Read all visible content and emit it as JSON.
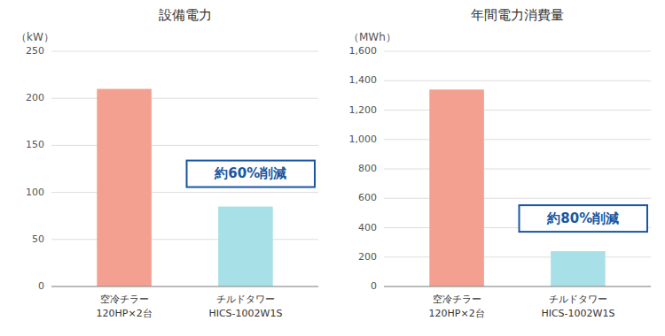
{
  "chart_data": [
    {
      "type": "bar",
      "title": "設備電力",
      "ylabel": "（kW）",
      "categories": [
        "空冷チラー\n120HP×2台",
        "チルドタワー\nHICS-1002W1S"
      ],
      "values": [
        210,
        85
      ],
      "colors": [
        "#F4A090",
        "#A8E0E8"
      ],
      "ylim": [
        0,
        250
      ],
      "yticks": [
        0,
        50,
        100,
        150,
        200,
        250
      ],
      "grid": true,
      "annotation": "約60%削減"
    },
    {
      "type": "bar",
      "title": "年間電力消費量",
      "ylabel": "（MWh）",
      "categories": [
        "空冷チラー\n120HP×2台",
        "チルドタワー\nHICS-1002W1S"
      ],
      "values": [
        1340,
        240
      ],
      "colors": [
        "#F4A090",
        "#A8E0E8"
      ],
      "ylim": [
        0,
        1600
      ],
      "yticks": [
        0,
        200,
        400,
        600,
        800,
        {
          "value": 1000,
          "label": "1,000"
        },
        {
          "value": 1200,
          "label": "1,200"
        },
        {
          "value": 1400,
          "label": "1,400"
        },
        {
          "value": 1600,
          "label": "1,600"
        }
      ],
      "grid": true,
      "annotation": "約80%削減"
    }
  ]
}
